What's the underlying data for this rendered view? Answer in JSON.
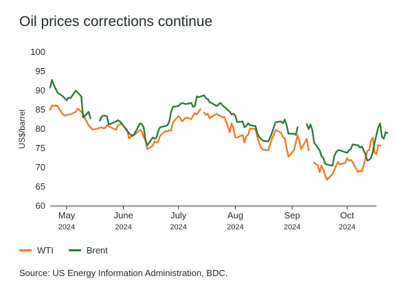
{
  "title": "Oil prices corrections continue",
  "source": "Source: US Energy Information Administration, BDC.",
  "chart_data": {
    "type": "line",
    "title": "Oil prices corrections continue",
    "ylabel": "US$/barrel",
    "xlabel": "",
    "ylim": [
      60,
      100
    ],
    "yticks": [
      60,
      65,
      70,
      75,
      80,
      85,
      90,
      95,
      100
    ],
    "xlim": [
      "2024-04-22",
      "2024-10-17"
    ],
    "xticks": [
      {
        "date": "2024-05-01",
        "month": "May",
        "year": "2024"
      },
      {
        "date": "2024-06-01",
        "month": "June",
        "year": "2024"
      },
      {
        "date": "2024-07-01",
        "month": "July",
        "year": "2024"
      },
      {
        "date": "2024-08-01",
        "month": "Aug",
        "year": "2024"
      },
      {
        "date": "2024-09-01",
        "month": "Sep",
        "year": "2024"
      },
      {
        "date": "2024-10-01",
        "month": "Oct",
        "year": "2024"
      }
    ],
    "grid": false,
    "legend_position": "bottom-left",
    "series": [
      {
        "name": "WTI",
        "color": "#f07a22",
        "points": [
          [
            "2024-04-22",
            85.0
          ],
          [
            "2024-04-23",
            86.2
          ],
          [
            "2024-04-24",
            86.0
          ],
          [
            "2024-04-25",
            86.2
          ],
          [
            "2024-04-26",
            86.0
          ],
          [
            "2024-04-29",
            83.8
          ],
          [
            "2024-04-30",
            83.5
          ],
          [
            "2024-05-01",
            83.6
          ],
          [
            "2024-05-02",
            83.8
          ],
          [
            "2024-05-03",
            83.8
          ],
          [
            "2024-05-06",
            84.5
          ],
          [
            "2024-05-07",
            85.3
          ],
          [
            "2024-05-08",
            85.0
          ],
          [
            "2024-05-09",
            84.5
          ],
          [
            "2024-05-10",
            83.8
          ],
          [
            "2024-05-13",
            81.0
          ],
          [
            "2024-05-14",
            80.5
          ],
          [
            "2024-05-15",
            79.8
          ],
          [
            "2024-05-16",
            80.0
          ],
          [
            "2024-05-17",
            80.0
          ],
          [
            "2024-05-20",
            80.5
          ],
          [
            "2024-05-21",
            80.2
          ],
          [
            "2024-05-22",
            80.3
          ],
          [
            "2024-05-23",
            81.0
          ],
          [
            "2024-05-24",
            80.7
          ],
          [
            "2024-05-28",
            79.8
          ],
          [
            "2024-05-29",
            81.0
          ],
          [
            "2024-05-30",
            81.2
          ],
          [
            "2024-05-31",
            81.3
          ],
          [
            "2024-06-03",
            79.8
          ],
          [
            "2024-06-04",
            77.6
          ],
          [
            "2024-06-05",
            78.0
          ],
          [
            "2024-06-06",
            78.5
          ],
          [
            "2024-06-07",
            78.5
          ],
          [
            "2024-06-10",
            79.8
          ],
          [
            "2024-06-11",
            79.3
          ],
          [
            "2024-06-12",
            78.0
          ],
          [
            "2024-06-13",
            77.0
          ],
          [
            "2024-06-14",
            74.8
          ],
          [
            "2024-06-17",
            75.7
          ],
          [
            "2024-06-18",
            76.8
          ],
          [
            "2024-06-19",
            76.5
          ],
          [
            "2024-06-20",
            76.8
          ],
          [
            "2024-06-21",
            78.3
          ],
          [
            "2024-06-24",
            79.5
          ],
          [
            "2024-06-25",
            79.4
          ],
          [
            "2024-06-26",
            79.7
          ],
          [
            "2024-06-27",
            79.6
          ],
          [
            "2024-06-28",
            81.8
          ],
          [
            "2024-07-01",
            83.4
          ],
          [
            "2024-07-02",
            82.8
          ],
          [
            "2024-07-03",
            82.0
          ],
          [
            "2024-07-05",
            83.0
          ],
          [
            "2024-07-08",
            82.6
          ],
          [
            "2024-07-09",
            83.5
          ],
          [
            "2024-07-10",
            84.2
          ],
          [
            "2024-07-11",
            83.8
          ],
          [
            "2024-07-12",
            84.5
          ],
          [
            "2024-07-13",
            85.2
          ],
          null,
          [
            "2024-07-15",
            84.3
          ],
          [
            "2024-07-16",
            83.7
          ],
          [
            "2024-07-17",
            84.0
          ],
          [
            "2024-07-18",
            82.8
          ],
          [
            "2024-07-19",
            83.2
          ],
          [
            "2024-07-22",
            84.0
          ],
          [
            "2024-07-23",
            83.5
          ],
          [
            "2024-07-24",
            83.5
          ],
          [
            "2024-07-25",
            83.0
          ],
          [
            "2024-07-26",
            83.2
          ],
          [
            "2024-07-29",
            79.2
          ],
          [
            "2024-07-30",
            81.5
          ],
          [
            "2024-07-31",
            80.2
          ],
          [
            "2024-08-01",
            77.8
          ],
          [
            "2024-08-02",
            77.8
          ],
          [
            "2024-08-05",
            78.5
          ],
          [
            "2024-08-06",
            76.5
          ],
          [
            "2024-08-07",
            78.2
          ],
          [
            "2024-08-08",
            78.5
          ],
          [
            "2024-08-09",
            80.2
          ],
          [
            "2024-08-12",
            80.0
          ],
          [
            "2024-08-13",
            78.0
          ],
          [
            "2024-08-14",
            76.5
          ],
          [
            "2024-08-15",
            75.2
          ],
          [
            "2024-08-16",
            74.7
          ],
          [
            "2024-08-19",
            74.5
          ],
          [
            "2024-08-20",
            76.0
          ],
          [
            "2024-08-21",
            77.5
          ],
          [
            "2024-08-22",
            78.5
          ],
          [
            "2024-08-23",
            79.8
          ],
          [
            "2024-08-26",
            79.0
          ],
          [
            "2024-08-27",
            78.0
          ],
          [
            "2024-08-28",
            77.5
          ],
          [
            "2024-08-29",
            75.0
          ],
          [
            "2024-08-30",
            72.8
          ],
          [
            "2024-09-02",
            74.5
          ],
          [
            "2024-09-03",
            76.5
          ],
          [
            "2024-09-04",
            78.5
          ],
          [
            "2024-09-05",
            76.8
          ],
          [
            "2024-09-06",
            74.8
          ],
          [
            "2024-09-09",
            77.5
          ],
          [
            "2024-09-10",
            74.5
          ],
          null,
          [
            "2024-09-13",
            71.3
          ],
          [
            "2024-09-15",
            70.5
          ],
          [
            "2024-09-16",
            68.8
          ],
          [
            "2024-09-17",
            70.5
          ],
          [
            "2024-09-18",
            69.5
          ],
          [
            "2024-09-19",
            68.0
          ],
          [
            "2024-09-20",
            66.8
          ],
          [
            "2024-09-23",
            68.3
          ],
          [
            "2024-09-24",
            69.3
          ],
          [
            "2024-09-25",
            70.5
          ],
          [
            "2024-09-26",
            71.5
          ],
          [
            "2024-09-27",
            70.8
          ],
          [
            "2024-09-30",
            71.2
          ],
          [
            "2024-10-01",
            72.5
          ],
          [
            "2024-10-02",
            71.8
          ],
          [
            "2024-10-03",
            72.0
          ],
          [
            "2024-10-04",
            71.5
          ],
          [
            "2024-10-05",
            70.5
          ],
          [
            "2024-10-07",
            68.8
          ],
          [
            "2024-10-08",
            69.2
          ],
          [
            "2024-10-09",
            69.0
          ],
          [
            "2024-10-10",
            70.5
          ],
          [
            "2024-10-11",
            72.5
          ],
          [
            "2024-10-12",
            74.3
          ],
          [
            "2024-10-13",
            74.5
          ],
          [
            "2024-10-14",
            77.0
          ],
          [
            "2024-10-15",
            77.8
          ],
          [
            "2024-10-16",
            74.0
          ],
          [
            "2024-10-17",
            73.5
          ],
          [
            "2024-10-18",
            75.8
          ],
          [
            "2024-10-19",
            75.7
          ]
        ]
      },
      {
        "name": "Brent",
        "color": "#2b7a37",
        "points": [
          [
            "2024-04-22",
            90.8
          ],
          [
            "2024-04-23",
            92.8
          ],
          [
            "2024-04-24",
            91.5
          ],
          [
            "2024-04-25",
            90.5
          ],
          [
            "2024-04-26",
            89.5
          ],
          [
            "2024-04-29",
            88.5
          ],
          [
            "2024-04-30",
            88.0
          ],
          [
            "2024-05-01",
            87.5
          ],
          [
            "2024-05-02",
            88.2
          ],
          [
            "2024-05-03",
            88.0
          ],
          [
            "2024-05-06",
            90.0
          ],
          [
            "2024-05-07",
            89.5
          ],
          [
            "2024-05-08",
            89.0
          ],
          [
            "2024-05-09",
            88.5
          ],
          [
            "2024-05-10",
            83.0
          ],
          [
            "2024-05-13",
            84.5
          ],
          [
            "2024-05-14",
            82.8
          ],
          null,
          [
            "2024-05-19",
            82.2
          ],
          [
            "2024-05-20",
            83.2
          ],
          [
            "2024-05-21",
            83.5
          ],
          [
            "2024-05-22",
            83.5
          ],
          [
            "2024-05-23",
            83.3
          ],
          [
            "2024-05-24",
            81.2
          ],
          [
            "2024-05-28",
            82.0
          ],
          [
            "2024-05-29",
            82.3
          ],
          [
            "2024-05-30",
            82.0
          ],
          [
            "2024-05-31",
            81.5
          ],
          [
            "2024-06-03",
            79.5
          ],
          [
            "2024-06-04",
            79.0
          ],
          [
            "2024-06-05",
            78.5
          ],
          [
            "2024-06-06",
            78.2
          ],
          [
            "2024-06-07",
            78.8
          ],
          [
            "2024-06-10",
            81.5
          ],
          [
            "2024-06-11",
            81.3
          ],
          [
            "2024-06-12",
            80.5
          ],
          [
            "2024-06-13",
            77.2
          ],
          [
            "2024-06-14",
            75.8
          ],
          [
            "2024-06-17",
            77.8
          ],
          [
            "2024-06-18",
            77.5
          ],
          [
            "2024-06-19",
            77.8
          ],
          [
            "2024-06-20",
            79.5
          ],
          [
            "2024-06-21",
            80.5
          ],
          [
            "2024-06-24",
            80.8
          ],
          [
            "2024-06-25",
            81.0
          ],
          [
            "2024-06-26",
            82.0
          ],
          [
            "2024-06-27",
            84.5
          ],
          [
            "2024-06-28",
            85.8
          ],
          [
            "2024-07-01",
            86.0
          ],
          [
            "2024-07-02",
            86.5
          ],
          [
            "2024-07-03",
            86.8
          ],
          [
            "2024-07-05",
            86.5
          ],
          [
            "2024-07-08",
            86.8
          ],
          [
            "2024-07-09",
            85.8
          ],
          [
            "2024-07-10",
            86.0
          ],
          [
            "2024-07-11",
            88.5
          ],
          [
            "2024-07-12",
            88.3
          ],
          [
            "2024-07-15",
            88.8
          ],
          [
            "2024-07-16",
            88.0
          ],
          [
            "2024-07-17",
            87.8
          ],
          [
            "2024-07-18",
            87.0
          ],
          [
            "2024-07-19",
            86.8
          ],
          [
            "2024-07-22",
            86.0
          ],
          [
            "2024-07-23",
            86.5
          ],
          [
            "2024-07-24",
            86.8
          ],
          [
            "2024-07-25",
            86.2
          ],
          [
            "2024-07-26",
            85.8
          ],
          [
            "2024-07-29",
            84.5
          ],
          [
            "2024-07-30",
            83.8
          ],
          [
            "2024-07-31",
            84.0
          ],
          [
            "2024-08-01",
            83.5
          ],
          [
            "2024-08-02",
            81.8
          ],
          [
            "2024-08-05",
            82.0
          ],
          [
            "2024-08-06",
            80.5
          ],
          [
            "2024-08-07",
            80.8
          ],
          [
            "2024-08-08",
            81.5
          ],
          [
            "2024-08-09",
            81.0
          ],
          [
            "2024-08-12",
            80.8
          ],
          [
            "2024-08-13",
            79.0
          ],
          [
            "2024-08-14",
            78.0
          ],
          [
            "2024-08-15",
            77.5
          ],
          [
            "2024-08-16",
            77.0
          ],
          [
            "2024-08-19",
            76.8
          ],
          [
            "2024-08-20",
            77.8
          ],
          [
            "2024-08-21",
            79.0
          ],
          [
            "2024-08-22",
            80.5
          ],
          [
            "2024-08-23",
            81.8
          ],
          [
            "2024-08-26",
            82.0
          ],
          [
            "2024-08-27",
            81.5
          ],
          [
            "2024-08-28",
            82.5
          ],
          [
            "2024-08-29",
            81.0
          ],
          [
            "2024-08-30",
            78.8
          ],
          [
            "2024-09-02",
            78.8
          ],
          [
            "2024-09-03",
            78.5
          ],
          [
            "2024-09-04",
            80.5
          ],
          null,
          [
            "2024-09-09",
            81.3
          ],
          [
            "2024-09-10",
            80.0
          ],
          [
            "2024-09-11",
            81.2
          ],
          [
            "2024-09-12",
            79.8
          ],
          [
            "2024-09-13",
            76.5
          ],
          [
            "2024-09-16",
            74.5
          ],
          [
            "2024-09-17",
            73.0
          ],
          [
            "2024-09-18",
            72.5
          ],
          [
            "2024-09-19",
            71.0
          ],
          [
            "2024-09-20",
            70.8
          ],
          [
            "2024-09-23",
            70.5
          ],
          [
            "2024-09-24",
            73.0
          ],
          [
            "2024-09-25",
            74.0
          ],
          [
            "2024-09-26",
            74.5
          ],
          [
            "2024-09-27",
            74.5
          ],
          [
            "2024-09-30",
            74.0
          ],
          [
            "2024-10-01",
            73.8
          ],
          [
            "2024-10-02",
            74.5
          ],
          [
            "2024-10-03",
            74.8
          ],
          [
            "2024-10-04",
            76.0
          ],
          [
            "2024-10-07",
            75.8
          ],
          [
            "2024-10-08",
            75.2
          ],
          [
            "2024-10-09",
            75.5
          ],
          [
            "2024-10-10",
            74.5
          ],
          [
            "2024-10-11",
            73.5
          ],
          [
            "2024-10-12",
            71.8
          ],
          [
            "2024-10-13",
            72.0
          ],
          [
            "2024-10-14",
            72.5
          ],
          [
            "2024-10-15",
            74.0
          ],
          [
            "2024-10-16",
            76.5
          ],
          [
            "2024-10-17",
            78.5
          ],
          [
            "2024-10-18",
            80.5
          ],
          [
            "2024-10-19",
            81.5
          ],
          [
            "2024-10-20",
            78.0
          ],
          [
            "2024-10-21",
            77.5
          ],
          [
            "2024-10-22",
            79.2
          ],
          [
            "2024-10-23",
            79.0
          ]
        ]
      }
    ]
  }
}
